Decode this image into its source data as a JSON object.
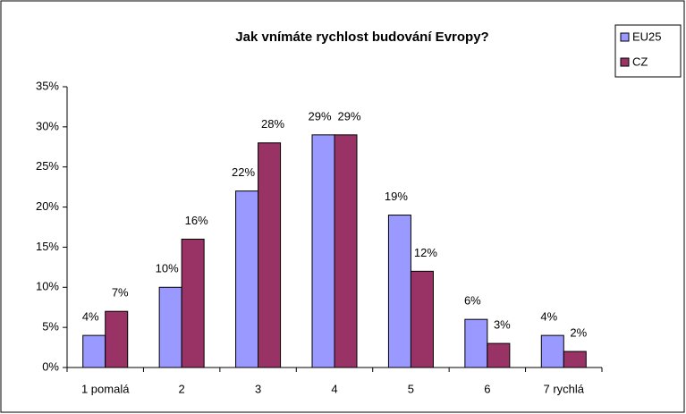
{
  "chart_data": {
    "type": "bar",
    "title": "Jak vnímáte rychlost budování Evropy?",
    "categories": [
      "1 pomalá",
      "2",
      "3",
      "4",
      "5",
      "6",
      "7 rychlá"
    ],
    "series": [
      {
        "name": "EU25",
        "color": "#9999ff",
        "values": [
          4,
          10,
          22,
          29,
          19,
          6,
          4
        ],
        "value_labels": [
          "4%",
          "10%",
          "22%",
          "29%",
          "19%",
          "6%",
          "4%"
        ]
      },
      {
        "name": "CZ",
        "color": "#993366",
        "values": [
          7,
          16,
          28,
          29,
          12,
          3,
          2
        ],
        "value_labels": [
          "7%",
          "16%",
          "28%",
          "29%",
          "12%",
          "3%",
          "2%"
        ]
      }
    ],
    "ylim": [
      0,
      35
    ],
    "yticks": [
      {
        "value": 0,
        "label": "0%"
      },
      {
        "value": 5,
        "label": "5%"
      },
      {
        "value": 10,
        "label": "10%"
      },
      {
        "value": 15,
        "label": "15%"
      },
      {
        "value": 20,
        "label": "20%"
      },
      {
        "value": 25,
        "label": "25%"
      },
      {
        "value": 30,
        "label": "30%"
      },
      {
        "value": 35,
        "label": "35%"
      }
    ],
    "grid": false,
    "legend": "right"
  }
}
